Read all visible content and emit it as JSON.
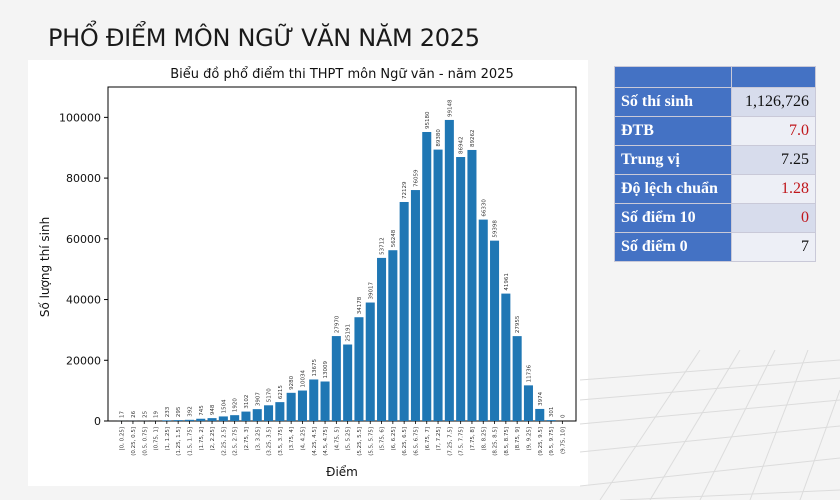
{
  "page_title": "PHỔ ĐIỂM MÔN NGỮ VĂN NĂM 2025",
  "stats_table": {
    "rows": [
      {
        "label": "Số thí sinh",
        "value": "1,126,726",
        "color": "#111111"
      },
      {
        "label": "ĐTB",
        "value": "7.0",
        "color": "#c0171c"
      },
      {
        "label": "Trung vị",
        "value": "7.25",
        "color": "#111111"
      },
      {
        "label": "Độ lệch chuẩn",
        "value": "1.28",
        "color": "#c0171c"
      },
      {
        "label": "Số điểm 10",
        "value": "0",
        "color": "#c0171c"
      },
      {
        "label": "Số điểm 0",
        "value": "7",
        "color": "#111111"
      }
    ]
  },
  "chart_data": {
    "type": "bar",
    "title": "Biểu đồ phổ điểm thi THPT môn Ngữ văn - năm 2025",
    "xlabel": "Điểm",
    "ylabel": "Số lượng thí sinh",
    "ylim": [
      0,
      110000
    ],
    "yticks": [
      0,
      20000,
      40000,
      60000,
      80000,
      100000
    ],
    "bar_color": "#1f77b4",
    "grid": false,
    "categories": [
      "[0, 0.25]",
      "(0.25, 0.5]",
      "(0.5, 0.75]",
      "(0.75, 1]",
      "(1, 1.25]",
      "(1.25, 1.5]",
      "(1.5, 1.75]",
      "(1.75, 2]",
      "(2, 2.25]",
      "(2.25, 2.5]",
      "(2.5, 2.75]",
      "(2.75, 3]",
      "(3, 3.25]",
      "(3.25, 3.5]",
      "(3.5, 3.75]",
      "(3.75, 4]",
      "(4, 4.25]",
      "(4.25, 4.5]",
      "(4.5, 4.75]",
      "(4.75, 5]",
      "(5, 5.25]",
      "(5.25, 5.5]",
      "(5.5, 5.75]",
      "(5.75, 6]",
      "(6, 6.25]",
      "(6.25, 6.5]",
      "(6.5, 6.75]",
      "(6.75, 7]",
      "(7, 7.25]",
      "(7.25, 7.5]",
      "(7.5, 7.75]",
      "(7.75, 8]",
      "(8, 8.25]",
      "(8.25, 8.5]",
      "(8.5, 8.75]",
      "(8.75, 9]",
      "(9, 9.25]",
      "(9.25, 9.5]",
      "(9.5, 9.75]",
      "(9.75, 10]"
    ],
    "values": [
      17,
      26,
      25,
      19,
      233,
      295,
      392,
      745,
      948,
      1504,
      1920,
      3102,
      3907,
      5170,
      6215,
      9280,
      10034,
      13675,
      13009,
      27970,
      25191,
      34178,
      39017,
      53712,
      56248,
      72129,
      76059,
      95180,
      89380,
      99148,
      86942,
      89262,
      66330,
      59398,
      41961,
      27955,
      11736,
      3974,
      301,
      0
    ]
  }
}
